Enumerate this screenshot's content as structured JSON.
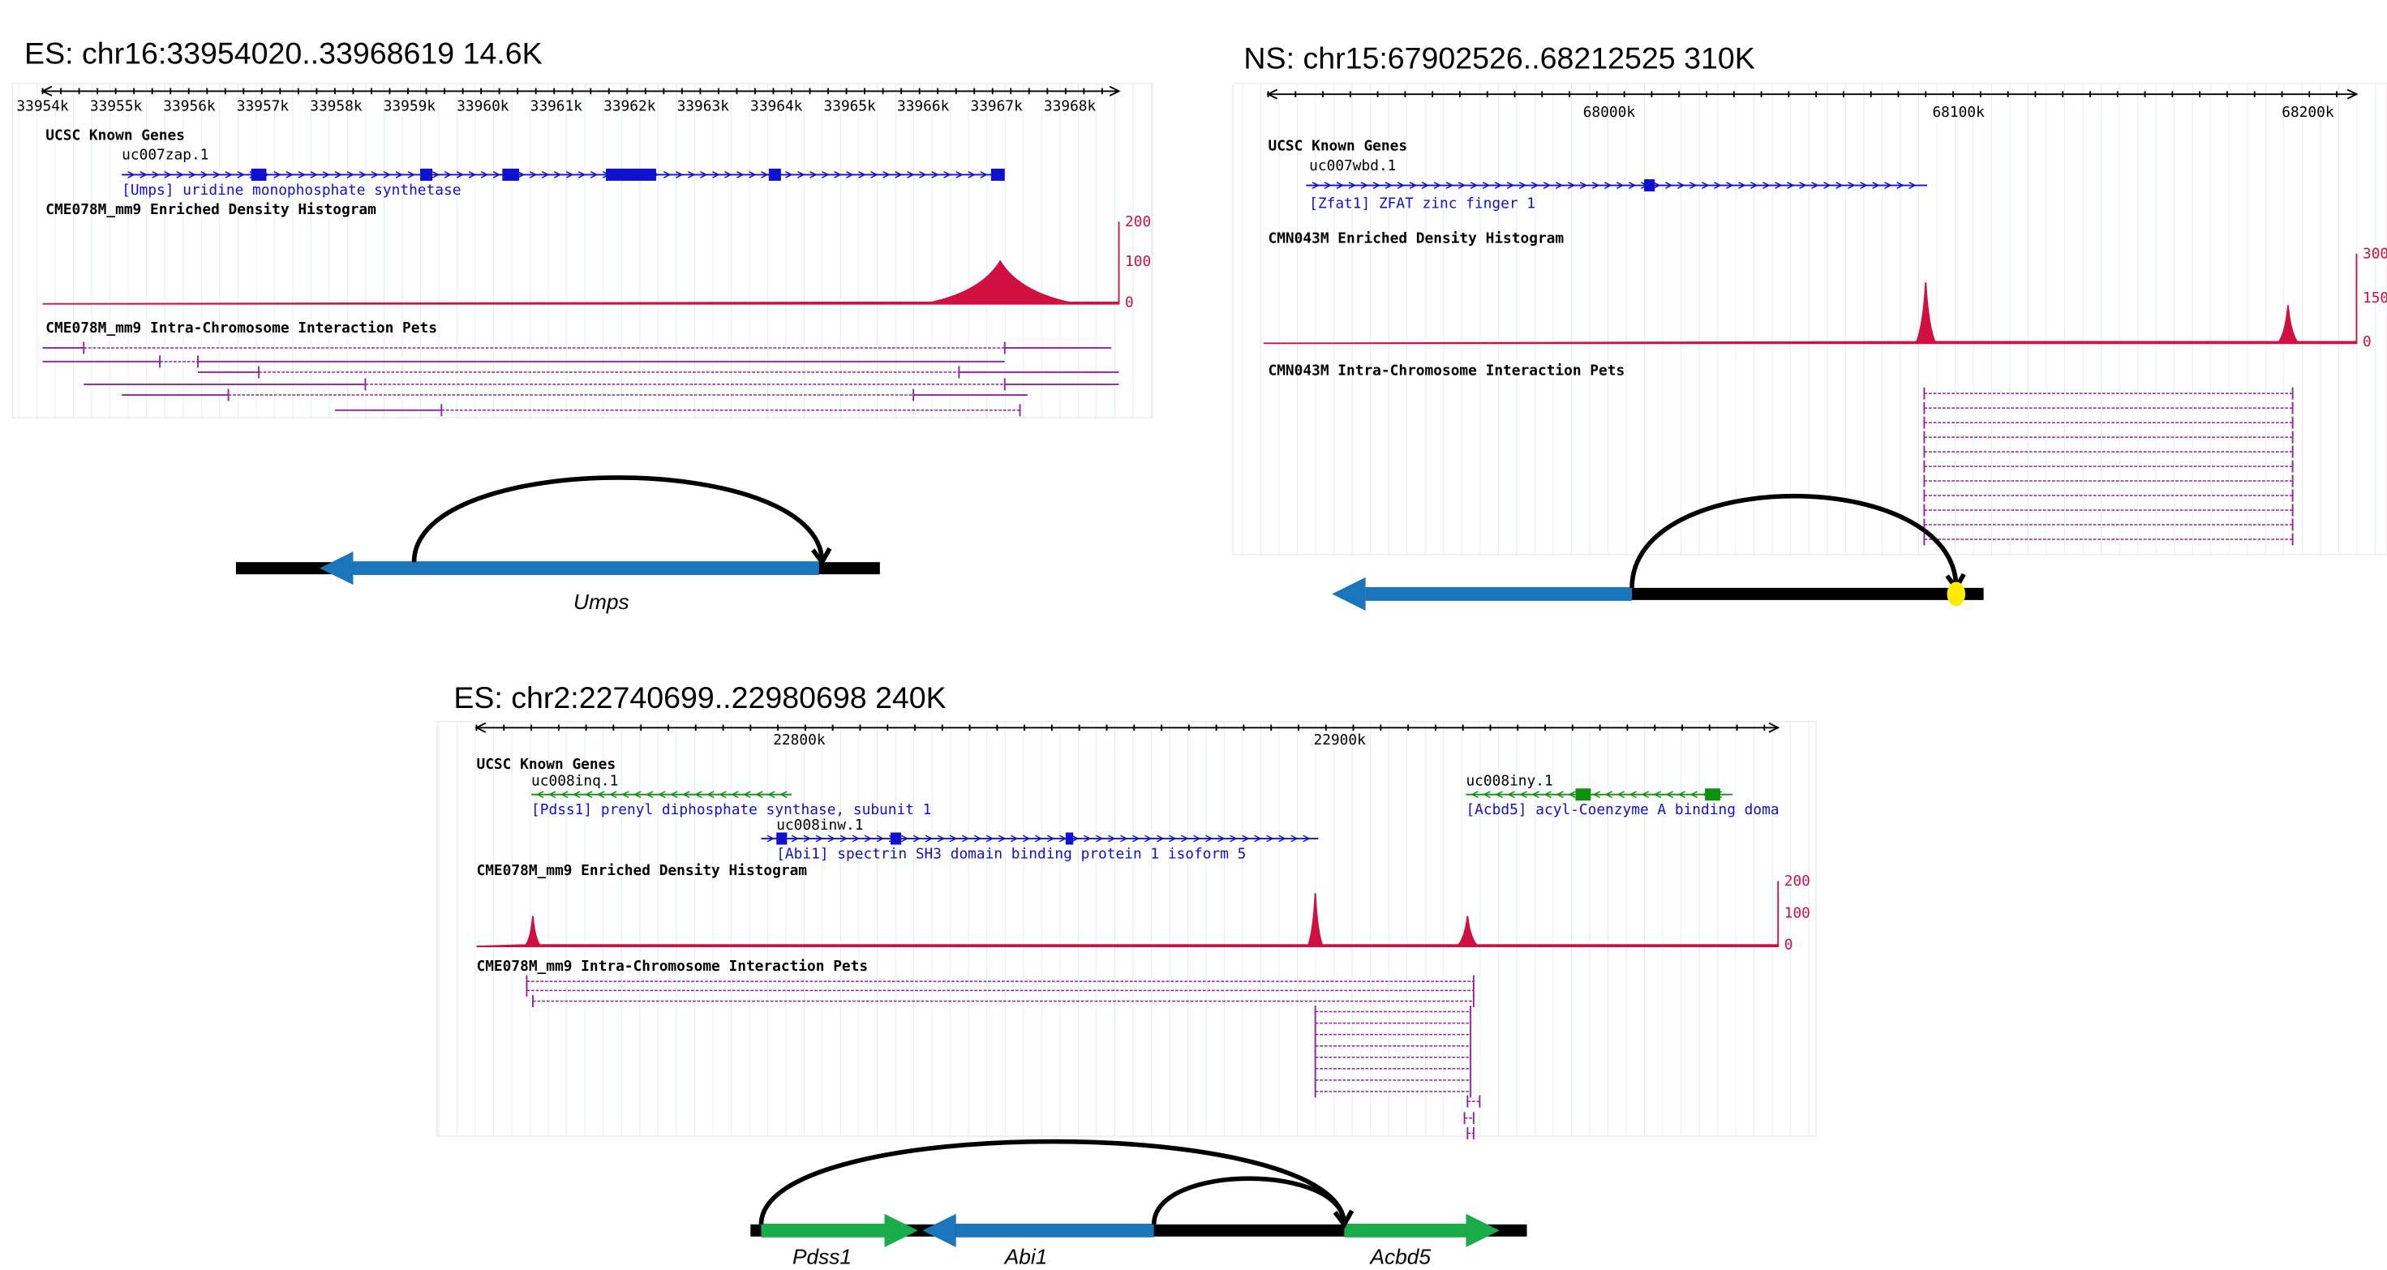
{
  "panels": [
    {
      "title": "ES:  chr16:33954020..33968619   14.6K",
      "ruler": [
        "33954k",
        "33955k",
        "33956k",
        "33957k",
        "33958k",
        "33959k",
        "33960k",
        "33961k",
        "33962k",
        "33963k",
        "33964k",
        "33965k",
        "33966k",
        "33967k",
        "33968k"
      ],
      "genes_label": "UCSC Known Genes",
      "genes": [
        {
          "id": "uc007zap.1",
          "desc": "[Umps] uridine monophosphate synthetase"
        }
      ],
      "histogram_label": "CME078M_mm9 Enriched Density Histogram",
      "histogram_axis": [
        "200",
        "100",
        "0"
      ],
      "pets_label": "CME078M_mm9 Intra-Chromosome Interaction Pets",
      "diagram_genes": [
        "Umps"
      ]
    },
    {
      "title": "NS:  chr15:67902526..68212525    310K",
      "ruler": [
        "68000k",
        "68100k",
        "68200k"
      ],
      "genes_label": "UCSC Known Genes",
      "genes": [
        {
          "id": "uc007wbd.1",
          "desc": "[Zfat1] ZFAT zinc finger 1"
        }
      ],
      "histogram_label": "CMN043M Enriched Density Histogram",
      "histogram_axis": [
        "300",
        "150",
        "0"
      ],
      "pets_label": "CMN043M Intra-Chromosome Interaction Pets",
      "diagram_genes": []
    },
    {
      "title": "ES: chr2:22740699..22980698       240K",
      "ruler": [
        "22800k",
        "22900k"
      ],
      "genes_label": "UCSC Known Genes",
      "genes": [
        {
          "id": "uc008inq.1",
          "desc": "[Pdss1] prenyl diphosphate synthase, subunit 1"
        },
        {
          "id": "uc008inw.1",
          "desc": "[Abi1] spectrin SH3 domain binding protein 1 isoform 5"
        },
        {
          "id": "uc008iny.1",
          "desc": "[Acbd5] acyl-Coenzyme A binding doma"
        }
      ],
      "histogram_label": "CME078M_mm9 Enriched Density Histogram",
      "histogram_axis": [
        "200",
        "100",
        "0"
      ],
      "pets_label": "CME078M_mm9 Intra-Chromosome Interaction Pets",
      "diagram_genes": [
        "Pdss1",
        "Abi1",
        "Acbd5"
      ]
    }
  ]
}
